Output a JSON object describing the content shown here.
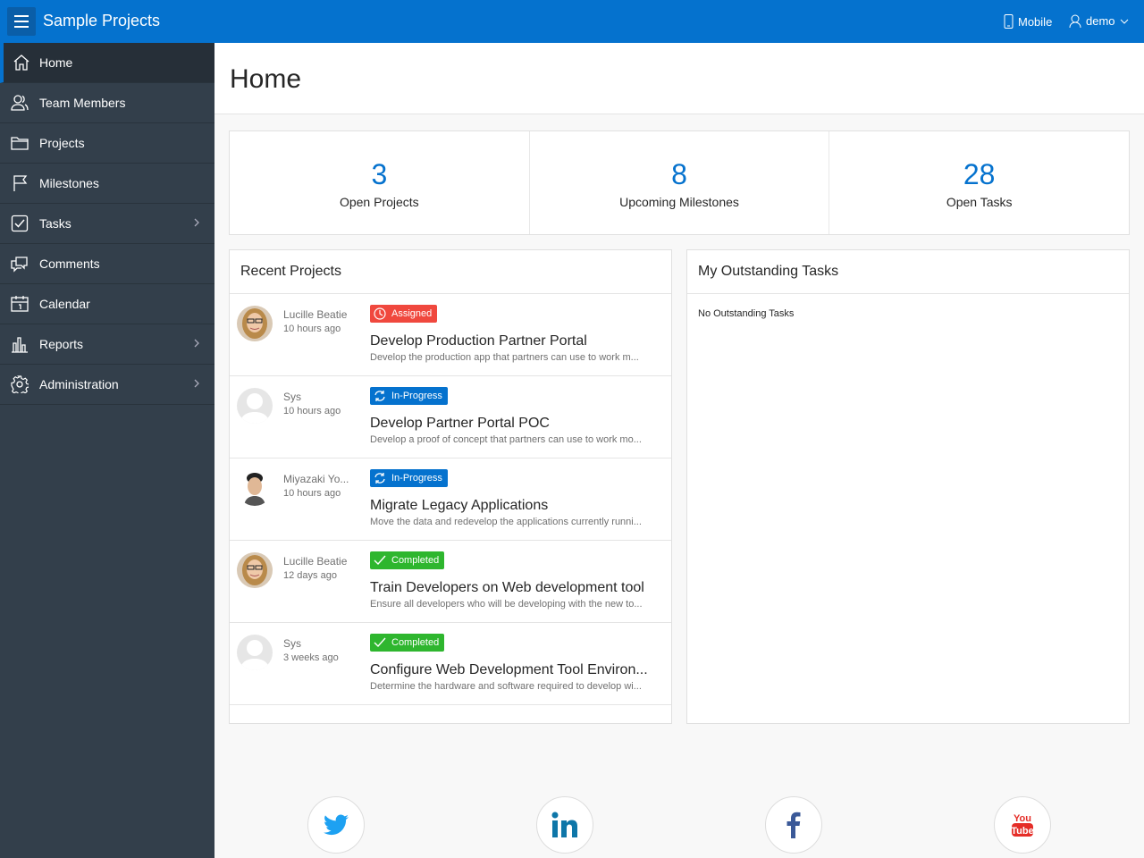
{
  "header": {
    "title": "Sample Projects",
    "mobile_label": "Mobile",
    "user_label": "demo",
    "color": "#0572ce"
  },
  "sidebar": {
    "items": [
      {
        "label": "Home",
        "icon": "home-icon",
        "active": true
      },
      {
        "label": "Team Members",
        "icon": "users-icon"
      },
      {
        "label": "Projects",
        "icon": "folder-icon"
      },
      {
        "label": "Milestones",
        "icon": "flag-icon"
      },
      {
        "label": "Tasks",
        "icon": "check-square-icon",
        "submenu": true
      },
      {
        "label": "Comments",
        "icon": "comments-icon"
      },
      {
        "label": "Calendar",
        "icon": "calendar-icon"
      },
      {
        "label": "Reports",
        "icon": "bar-chart-icon",
        "submenu": true
      },
      {
        "label": "Administration",
        "icon": "gear-icon",
        "submenu": true
      }
    ]
  },
  "page": {
    "title": "Home"
  },
  "stats": [
    {
      "value": "3",
      "label": "Open Projects"
    },
    {
      "value": "8",
      "label": "Upcoming Milestones"
    },
    {
      "value": "28",
      "label": "Open Tasks"
    }
  ],
  "recent": {
    "title": "Recent Projects",
    "rows": [
      {
        "user": "Lucille Beatie",
        "time": "10 hours ago",
        "status": "Assigned",
        "title": "Develop Production Partner Portal",
        "desc": "Develop the production app that partners can use to work m..."
      },
      {
        "user": "Sys",
        "time": "10 hours ago",
        "status": "In-Progress",
        "title": "Develop Partner Portal POC",
        "desc": "Develop a proof of concept that partners can use to work mo..."
      },
      {
        "user": "Miyazaki Yo...",
        "time": "10 hours ago",
        "status": "In-Progress",
        "title": "Migrate Legacy Applications",
        "desc": "Move the data and redevelop the applications currently runni..."
      },
      {
        "user": "Lucille Beatie",
        "time": "12 days ago",
        "status": "Completed",
        "title": "Train Developers on Web development tool",
        "desc": "Ensure all developers who will be developing with the new to..."
      },
      {
        "user": "Sys",
        "time": "3 weeks ago",
        "status": "Completed",
        "title": "Configure Web Development Tool Environ...",
        "desc": "Determine the hardware and software required to develop wi..."
      }
    ]
  },
  "status_colors": {
    "Assigned": "#f0483e",
    "In-Progress": "#0572ce",
    "Completed": "#2eb62e"
  },
  "tasks": {
    "title": "My Outstanding Tasks",
    "empty": "No Outstanding Tasks"
  },
  "social": {
    "youtube_logo": "You Tube"
  }
}
